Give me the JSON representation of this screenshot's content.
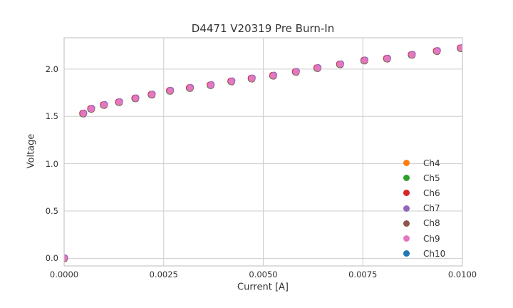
{
  "window": {
    "background": "#ffffff",
    "text_color": "#333333"
  },
  "chart_data": {
    "type": "scatter",
    "title": "D4471 V20319 Pre Burn-In",
    "xlabel": "Current [A]",
    "ylabel": "Voltage",
    "style": "whitegrid",
    "grid": true,
    "grid_color": "#cdcdcd",
    "spine_color": "#c8c8c8",
    "xlim": [
      0.0,
      0.01
    ],
    "ylim": [
      -0.08,
      2.33
    ],
    "xticks": [
      0.0,
      0.0025,
      0.005,
      0.0075,
      0.01
    ],
    "xtick_labels": [
      "0.0000",
      "0.0025",
      "0.0050",
      "0.0075",
      "0.0100"
    ],
    "yticks": [
      0.0,
      0.5,
      1.0,
      1.5,
      2.0
    ],
    "ytick_labels": [
      "0.0",
      "0.5",
      "1.0",
      "1.5",
      "2.0"
    ],
    "legend": {
      "position": "lower right",
      "frame": false,
      "entries": [
        {
          "label": "Ch4",
          "color": "#ff7f0e"
        },
        {
          "label": "Ch5",
          "color": "#2ca02c"
        },
        {
          "label": "Ch6",
          "color": "#d62728"
        },
        {
          "label": "Ch7",
          "color": "#9467bd"
        },
        {
          "label": "Ch8",
          "color": "#8c564b"
        },
        {
          "label": "Ch9",
          "color": "#e377c2"
        },
        {
          "label": "Ch10",
          "color": "#1f77b4"
        }
      ]
    },
    "series": [
      {
        "name": "Ch4",
        "color": "#ff7f0e"
      },
      {
        "name": "Ch5",
        "color": "#2ca02c"
      },
      {
        "name": "Ch6",
        "color": "#d62728"
      },
      {
        "name": "Ch7",
        "color": "#9467bd"
      },
      {
        "name": "Ch8",
        "color": "#8c564b"
      },
      {
        "name": "Ch9",
        "color": "#e377c2"
      },
      {
        "name": "Ch10",
        "color": "#1f77b4"
      }
    ],
    "all_series_overlap": true,
    "top_series": "Ch9",
    "plot_order": [
      "Ch4",
      "Ch5",
      "Ch6",
      "Ch7",
      "Ch8",
      "Ch10",
      "Ch9"
    ],
    "points": [
      [
        0.0,
        0.0
      ],
      [
        0.00048,
        1.53
      ],
      [
        0.00068,
        1.58
      ],
      [
        0.001,
        1.62
      ],
      [
        0.00138,
        1.65
      ],
      [
        0.00179,
        1.69
      ],
      [
        0.0022,
        1.73
      ],
      [
        0.00266,
        1.77
      ],
      [
        0.00316,
        1.8
      ],
      [
        0.00368,
        1.83
      ],
      [
        0.0042,
        1.87
      ],
      [
        0.00471,
        1.9
      ],
      [
        0.00525,
        1.93
      ],
      [
        0.00582,
        1.97
      ],
      [
        0.00636,
        2.01
      ],
      [
        0.00693,
        2.05
      ],
      [
        0.00754,
        2.09
      ],
      [
        0.00811,
        2.11
      ],
      [
        0.00873,
        2.15
      ],
      [
        0.00936,
        2.19
      ],
      [
        0.00996,
        2.22
      ]
    ]
  }
}
